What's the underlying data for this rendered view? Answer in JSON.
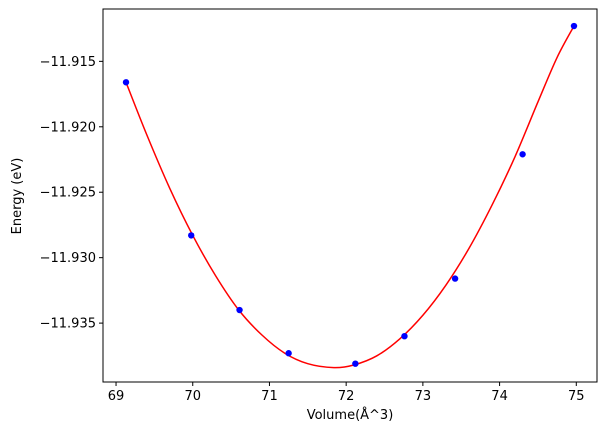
{
  "chart_data": {
    "type": "scatter",
    "title": "",
    "xlabel": "Volume(Å^3)",
    "ylabel": "Energy (eV)",
    "xlim": [
      68.83,
      75.27
    ],
    "ylim": [
      -11.9395,
      -11.911
    ],
    "x_ticks": [
      69,
      70,
      71,
      72,
      73,
      74,
      75
    ],
    "x_tick_labels": [
      "69",
      "70",
      "71",
      "72",
      "73",
      "74",
      "75"
    ],
    "y_ticks": [
      -11.915,
      -11.92,
      -11.925,
      -11.93,
      -11.935
    ],
    "y_tick_labels": [
      "−11.915",
      "−11.920",
      "−11.925",
      "−11.930",
      "−11.935"
    ],
    "grid": false,
    "legend": "none",
    "series": [
      {
        "kind": "points",
        "color": "#0000ff",
        "x": [
          69.13,
          69.98,
          70.61,
          71.25,
          72.12,
          72.76,
          73.42,
          74.3,
          74.97
        ],
        "y": [
          -11.9166,
          -11.9283,
          -11.934,
          -11.9373,
          -11.9381,
          -11.936,
          -11.9316,
          -11.9221,
          -11.9123
        ]
      },
      {
        "kind": "fit-curve",
        "color": "#ff0000",
        "x": [
          69.13,
          69.4,
          69.7,
          70.0,
          70.3,
          70.6,
          70.9,
          71.2,
          71.5,
          71.84,
          72.1,
          72.4,
          72.7,
          73.0,
          73.3,
          73.6,
          73.9,
          74.2,
          74.5,
          74.75,
          74.97
        ],
        "y": [
          -11.9166,
          -11.9206,
          -11.9247,
          -11.9283,
          -11.9314,
          -11.934,
          -11.9359,
          -11.9373,
          -11.9381,
          -11.9384,
          -11.9382,
          -11.9375,
          -11.9362,
          -11.9344,
          -11.9321,
          -11.9293,
          -11.926,
          -11.9223,
          -11.9181,
          -11.9147,
          -11.9123
        ]
      }
    ]
  }
}
